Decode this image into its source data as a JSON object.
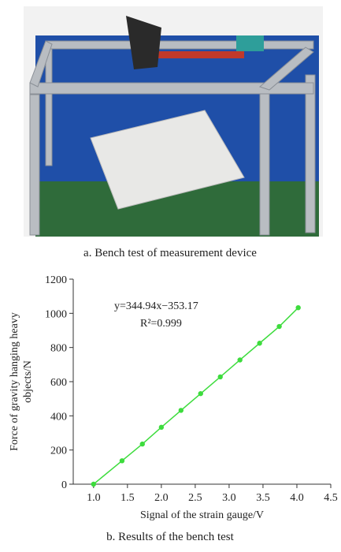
{
  "captions": [
    "a. Bench test of measurement device",
    "b. Results of the bench test"
  ],
  "chart_data": {
    "type": "line",
    "xlabel": "Signal of the strain gauge/V",
    "ylabel": [
      "Force of gravity hanging heavy",
      "objects/N"
    ],
    "annotations": [
      "y=344.94x−353.17",
      "R²=0.999"
    ],
    "x": [
      1.0,
      1.42,
      1.72,
      2.0,
      2.29,
      2.58,
      2.87,
      3.16,
      3.45,
      3.74,
      4.02
    ],
    "series": [
      {
        "color": "#3ddc3d",
        "values": [
          0,
          137,
          235,
          333,
          432,
          530,
          628,
          727,
          825,
          923,
          1033
        ]
      }
    ],
    "xlim": [
      0.7,
      4.5
    ],
    "xticks": [
      {
        "value": 1,
        "label": "1.0"
      },
      1.5,
      {
        "value": 2,
        "label": "2.0"
      },
      2.5,
      {
        "value": 3,
        "label": "3.0"
      },
      3.5,
      {
        "value": 4,
        "label": "4.0"
      },
      4.5
    ],
    "ylim": [
      0,
      1200
    ],
    "yticks": [
      0,
      200,
      400,
      600,
      800,
      1000,
      1200
    ]
  }
}
